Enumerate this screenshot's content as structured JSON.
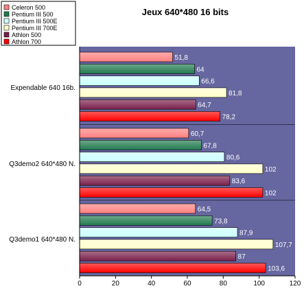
{
  "chart_data": {
    "type": "bar",
    "orientation": "horizontal",
    "title": "Jeux 640*480 16 bits",
    "xlim": [
      0,
      120
    ],
    "x_ticks": [
      "0",
      "20",
      "40",
      "60",
      "80",
      "100",
      "120"
    ],
    "grid": false,
    "legend_placement": "top-left",
    "categories": [
      "Expendable 640 16b.",
      "Q3demo2 640*480 N.",
      "Q3demo1 640*480 N."
    ],
    "series": [
      {
        "name": "Celeron 500",
        "color": "#ff8080",
        "values": [
          51.8,
          60.7,
          64.5
        ],
        "labels": [
          "51,8",
          "60,7",
          "64,5"
        ]
      },
      {
        "name": "Pentium III 500",
        "color": "#217a4e",
        "values": [
          64,
          67.8,
          73.8
        ],
        "labels": [
          "64",
          "67,8",
          "73,8"
        ]
      },
      {
        "name": "Pentium III 500E",
        "color": "#ccffff",
        "values": [
          66.6,
          80.6,
          87.9
        ],
        "labels": [
          "66,6",
          "80,6",
          "87,9"
        ]
      },
      {
        "name": "Pentium III 700E",
        "color": "#ffffcc",
        "values": [
          81.8,
          102,
          107.7
        ],
        "labels": [
          "81,8",
          "102",
          "107,7"
        ]
      },
      {
        "name": "Athlon 500",
        "color": "#7a1f4a",
        "values": [
          64.7,
          83.6,
          87
        ],
        "labels": [
          "64,7",
          "83,6",
          "87"
        ]
      },
      {
        "name": "Athlon 700",
        "color": "#ff0000",
        "values": [
          78.2,
          102,
          103.6
        ],
        "labels": [
          "78,2",
          "102",
          "103,6"
        ]
      }
    ],
    "plot_background": "#6666a0"
  }
}
